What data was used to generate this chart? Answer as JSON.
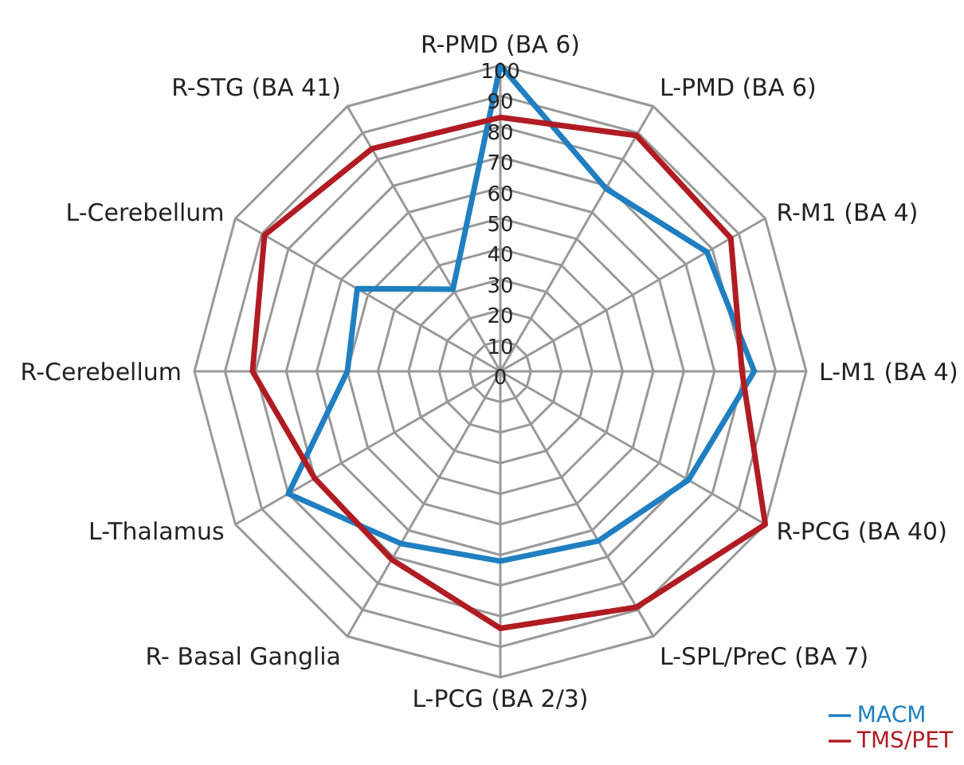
{
  "chart_data": {
    "type": "radar",
    "categories": [
      "R-PMD (BA 6)",
      "L-PMD (BA 6)",
      "R-M1 (BA 4)",
      "L-M1 (BA 4)",
      "R-PCG (BA 40)",
      "L-SPL/PreC (BA 7)",
      "L-PCG (BA 2/3)",
      "R- Basal Ganglia",
      "L-Thalamus",
      "R-Cerebellum",
      "L-Cerebellum",
      "R-STG (BA 41)"
    ],
    "series": [
      {
        "name": "MACM",
        "color": "#1f7fc1",
        "values": [
          100,
          69,
          78,
          83,
          71,
          64,
          62,
          65,
          80,
          50,
          54,
          31
        ]
      },
      {
        "name": "TMS/PET",
        "color": "#b01c22",
        "values": [
          83,
          89,
          87,
          79,
          100,
          89,
          84,
          71,
          70,
          81,
          89,
          84
        ]
      }
    ],
    "ylim": [
      0,
      100
    ],
    "yticks": [
      0,
      10,
      20,
      30,
      40,
      50,
      60,
      70,
      80,
      90,
      100
    ],
    "grid": true,
    "legend": "bottom right",
    "marker": "none"
  }
}
